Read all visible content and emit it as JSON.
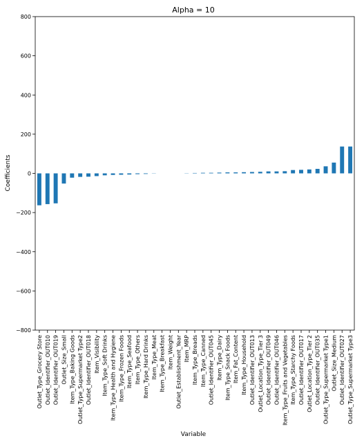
{
  "chart_data": {
    "type": "bar",
    "title": "Alpha = 10",
    "xlabel": "Variable",
    "ylabel": "Coefficients",
    "ylim": [
      -800,
      800
    ],
    "yticks": [
      -800,
      -600,
      -400,
      -200,
      0,
      200,
      400,
      600,
      800
    ],
    "grid": false,
    "bar_color": "#1f77b4",
    "categories": [
      "Outlet_Type_Grocery Store",
      "Outlet_Identifier_OUT010",
      "Outlet_Identifier_OUT019",
      "Outlet_Size_Small",
      "Item_Type_Baking Goods",
      "Outlet_Type_Supermarket Type2",
      "Outlet_Identifier_OUT018",
      "Item_Visibility",
      "Item_Type_Soft Drinks",
      "Item_Type_Health and Hygiene",
      "Item_Type_Frozen Foods",
      "Item_Type_Seafood",
      "Item_Type_Others",
      "Item_Type_Hard Drinks",
      "Item_Type_Meat",
      "Item_Type_Breakfast",
      "Item_Weight",
      "Outlet_Establishment_Year",
      "Item_MRP",
      "Item_Type_Breads",
      "Item_Type_Canned",
      "Outlet_Identifier_OUT045",
      "Item_Type_Dairy",
      "Item_Type_Snack Foods",
      "Item_Fat_Content",
      "Item_Type_Household",
      "Outlet_Identifier_OUT013",
      "Outlet_Location_Type_Tier 3",
      "Outlet_Identifier_OUT049",
      "Outlet_Identifier_OUT046",
      "Item_Type_Fruits and Vegetables",
      "Item_Type_Starchy Foods",
      "Outlet_Identifier_OUT017",
      "Outlet_Location_Type_Tier 2",
      "Outlet_Identifier_OUT035",
      "Outlet_Type_Supermarket Type1",
      "Outlet_Size_Medium",
      "Outlet_Identifier_OUT027",
      "Outlet_Type_Supermarket Type3"
    ],
    "values": [
      -163,
      -157,
      -153,
      -52,
      -22,
      -18,
      -17,
      -14,
      -10,
      -8,
      -7,
      -6,
      -4,
      -3,
      -1,
      0,
      0,
      0,
      1,
      2,
      3,
      3,
      4,
      5,
      5,
      6,
      7,
      8,
      10,
      10,
      11,
      17,
      18,
      20,
      23,
      36,
      55,
      137,
      137
    ]
  }
}
